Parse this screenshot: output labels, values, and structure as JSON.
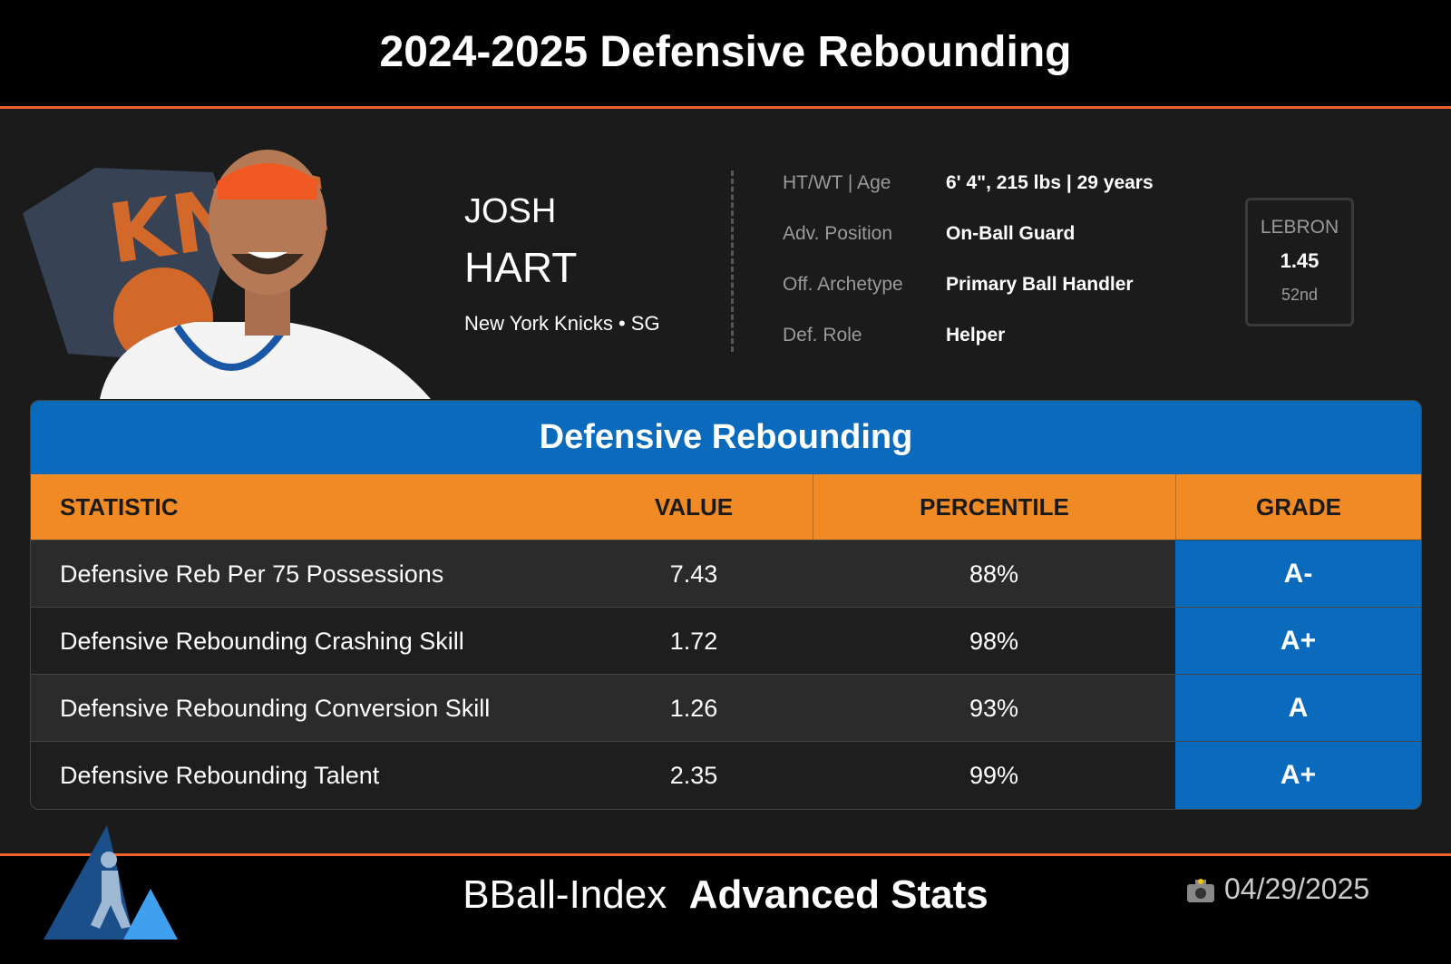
{
  "header": {
    "title": "2024-2025 Defensive Rebounding"
  },
  "player": {
    "first_name": "JOSH",
    "last_name": "HART",
    "team_position": "New York Knicks • SG"
  },
  "info": [
    {
      "label": "HT/WT | Age",
      "value": "6' 4\", 215 lbs | 29 years"
    },
    {
      "label": "Adv. Position",
      "value": "On-Ball Guard"
    },
    {
      "label": "Off. Archetype",
      "value": "Primary Ball Handler"
    },
    {
      "label": "Def. Role",
      "value": "Helper"
    }
  ],
  "lebron": {
    "label": "LEBRON",
    "value": "1.45",
    "rank": "52nd"
  },
  "table": {
    "title": "Defensive Rebounding",
    "columns": [
      "STATISTIC",
      "VALUE",
      "PERCENTILE",
      "GRADE"
    ],
    "rows": [
      [
        "Defensive Reb Per 75 Possessions",
        "7.43",
        "88%",
        "A-"
      ],
      [
        "Defensive Rebounding Crashing Skill",
        "1.72",
        "98%",
        "A+"
      ],
      [
        "Defensive Rebounding Conversion Skill",
        "1.26",
        "93%",
        "A"
      ],
      [
        "Defensive Rebounding Talent",
        "2.35",
        "99%",
        "A+"
      ]
    ]
  },
  "footer": {
    "brand": "BBall-Index",
    "brand_bold": "Advanced Stats",
    "date": "04/29/2025"
  }
}
